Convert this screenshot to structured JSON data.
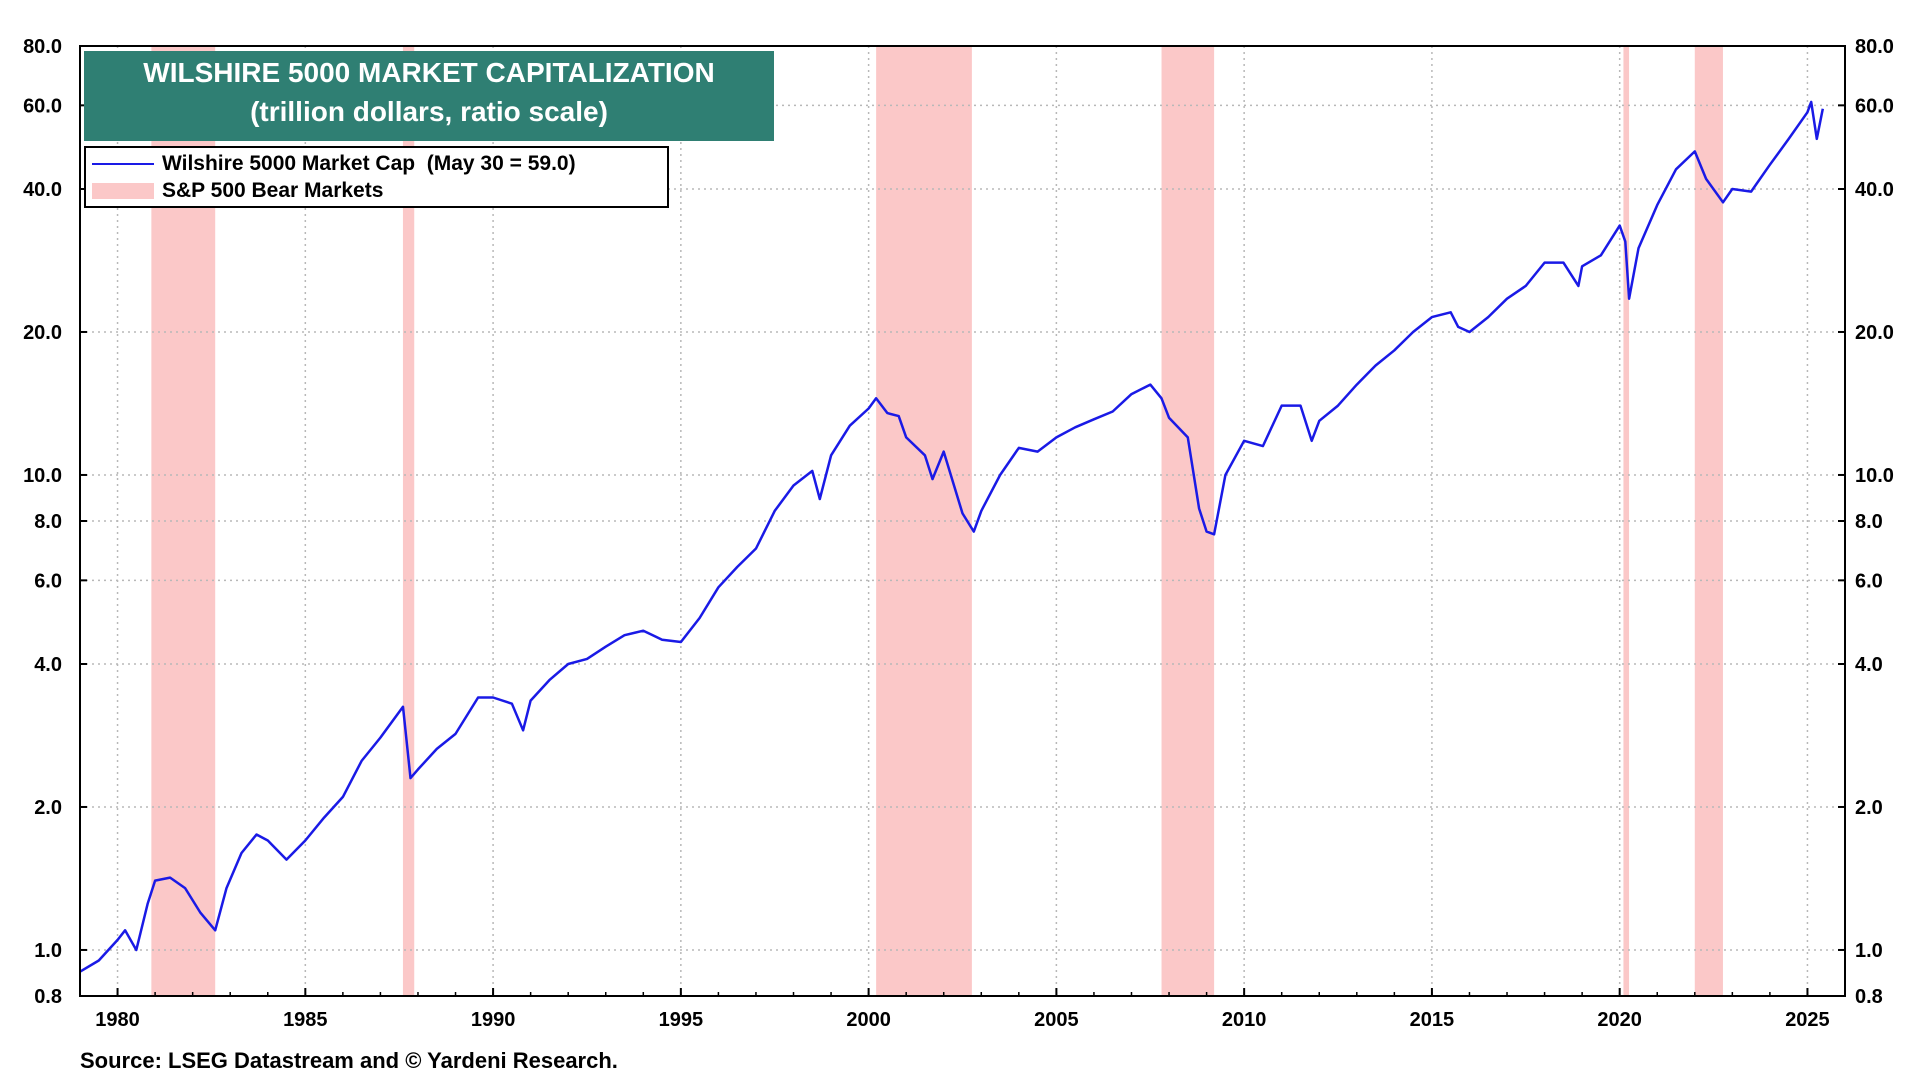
{
  "chart_data": {
    "type": "line",
    "title": "WILSHIRE 5000 MARKET CAPITALIZATION",
    "subtitle": "(trillion dollars, ratio scale)",
    "xlabel": "",
    "ylabel": "",
    "y_scale": "log",
    "ylim": [
      0.8,
      80.0
    ],
    "xlim": [
      1979.0,
      2026.0
    ],
    "x_ticks": [
      "1980",
      "1985",
      "1990",
      "1995",
      "2000",
      "2005",
      "2010",
      "2015",
      "2020",
      "2025"
    ],
    "y_ticks": [
      "0.8",
      "1.0",
      "2.0",
      "4.0",
      "6.0",
      "8.0",
      "10.0",
      "20.0",
      "40.0",
      "60.0",
      "80.0"
    ],
    "grid": true,
    "legend_placement": "top-left",
    "series": [
      {
        "name": "Wilshire 5000 Market Cap  (May 30 = 59.0)",
        "color": "#1a1ae6",
        "x": [
          1979.0,
          1979.5,
          1980.0,
          1980.2,
          1980.5,
          1980.8,
          1981.0,
          1981.4,
          1981.8,
          1982.2,
          1982.6,
          1982.9,
          1983.3,
          1983.7,
          1984.0,
          1984.5,
          1985.0,
          1985.5,
          1986.0,
          1986.5,
          1987.0,
          1987.6,
          1987.8,
          1988.0,
          1988.5,
          1989.0,
          1989.6,
          1990.0,
          1990.5,
          1990.8,
          1991.0,
          1991.5,
          1992.0,
          1992.5,
          1993.0,
          1993.5,
          1994.0,
          1994.5,
          1995.0,
          1995.5,
          1996.0,
          1996.5,
          1997.0,
          1997.5,
          1998.0,
          1998.5,
          1998.7,
          1999.0,
          1999.5,
          2000.0,
          2000.2,
          2000.5,
          2000.8,
          2001.0,
          2001.5,
          2001.7,
          2002.0,
          2002.5,
          2002.8,
          2003.0,
          2003.5,
          2004.0,
          2004.5,
          2005.0,
          2005.5,
          2006.0,
          2006.5,
          2007.0,
          2007.5,
          2007.8,
          2008.0,
          2008.5,
          2008.8,
          2009.0,
          2009.2,
          2009.5,
          2010.0,
          2010.5,
          2011.0,
          2011.5,
          2011.8,
          2012.0,
          2012.5,
          2013.0,
          2013.5,
          2014.0,
          2014.5,
          2015.0,
          2015.5,
          2015.7,
          2016.0,
          2016.5,
          2017.0,
          2017.5,
          2018.0,
          2018.5,
          2018.9,
          2019.0,
          2019.5,
          2020.0,
          2020.15,
          2020.25,
          2020.5,
          2021.0,
          2021.5,
          2022.0,
          2022.3,
          2022.75,
          2023.0,
          2023.5,
          2024.0,
          2024.5,
          2025.0,
          2025.1,
          2025.25,
          2025.41
        ],
        "values": [
          0.9,
          0.95,
          1.05,
          1.1,
          1.0,
          1.25,
          1.4,
          1.42,
          1.35,
          1.2,
          1.1,
          1.35,
          1.6,
          1.75,
          1.7,
          1.55,
          1.7,
          1.9,
          2.1,
          2.5,
          2.8,
          3.25,
          2.3,
          2.4,
          2.65,
          2.85,
          3.4,
          3.4,
          3.3,
          2.9,
          3.35,
          3.7,
          4.0,
          4.1,
          4.35,
          4.6,
          4.7,
          4.5,
          4.45,
          5.0,
          5.8,
          6.4,
          7.0,
          8.4,
          9.5,
          10.2,
          8.9,
          11.0,
          12.7,
          13.8,
          14.5,
          13.5,
          13.3,
          12.0,
          11.0,
          9.8,
          11.2,
          8.3,
          7.6,
          8.4,
          10.0,
          11.4,
          11.2,
          12.0,
          12.6,
          13.1,
          13.6,
          14.8,
          15.5,
          14.5,
          13.2,
          12.0,
          8.5,
          7.6,
          7.5,
          10.0,
          11.8,
          11.5,
          14.0,
          14.0,
          11.8,
          13.0,
          14.0,
          15.5,
          17.0,
          18.3,
          20.0,
          21.5,
          22.0,
          20.5,
          20.0,
          21.5,
          23.5,
          25.0,
          28.0,
          28.0,
          25.0,
          27.5,
          29.0,
          33.5,
          31.0,
          23.5,
          30.0,
          37.0,
          44.0,
          48.0,
          42.0,
          37.5,
          40.0,
          39.5,
          45.0,
          51.0,
          58.0,
          61.0,
          51.0,
          59.0
        ]
      }
    ],
    "bands": {
      "name": "S&P 500 Bear Markets",
      "color": "#fbc8c8",
      "ranges": [
        [
          1980.9,
          1982.6
        ],
        [
          1987.6,
          1987.9
        ],
        [
          2000.2,
          2002.75
        ],
        [
          2007.8,
          2009.2
        ],
        [
          2020.1,
          2020.25
        ],
        [
          2022.0,
          2022.75
        ]
      ]
    }
  },
  "source_text": "Source: LSEG Datastream and © Yardeni Research."
}
